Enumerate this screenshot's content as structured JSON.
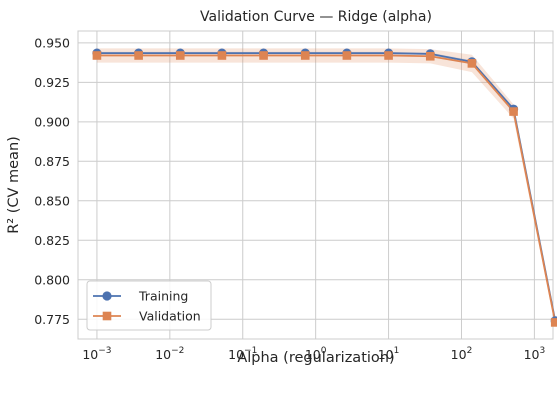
{
  "chart_data": {
    "type": "line",
    "title": "Validation Curve — Ridge (alpha)",
    "xlabel": "Alpha (regularization)",
    "ylabel": "R² (CV mean)",
    "xscale": "log",
    "xlim": [
      0.00055,
      1800
    ],
    "ylim": [
      0.7625,
      0.9575
    ],
    "x": [
      0.001,
      0.00373,
      0.0139,
      0.0518,
      0.193,
      0.72,
      2.68,
      10.0,
      37.3,
      139,
      518,
      1930
    ],
    "xticks": [
      {
        "value": 0.001,
        "base": "10",
        "exp": "−3"
      },
      {
        "value": 0.01,
        "base": "10",
        "exp": "−2"
      },
      {
        "value": 0.1,
        "base": "10",
        "exp": "−1"
      },
      {
        "value": 1,
        "base": "10",
        "exp": "0"
      },
      {
        "value": 10,
        "base": "10",
        "exp": "1"
      },
      {
        "value": 100,
        "base": "10",
        "exp": "2"
      },
      {
        "value": 1000,
        "base": "10",
        "exp": "3"
      }
    ],
    "yticks": [
      "0.775",
      "0.800",
      "0.825",
      "0.850",
      "0.875",
      "0.900",
      "0.925",
      "0.950"
    ],
    "grid": true,
    "legend_position": "lower-left",
    "series": [
      {
        "name": "Training",
        "marker": "circle",
        "color": "#4c72b0",
        "values": [
          0.9435,
          0.9435,
          0.9435,
          0.9435,
          0.9435,
          0.9435,
          0.9435,
          0.9435,
          0.943,
          0.938,
          0.908,
          0.774
        ],
        "band_halfwidth": [
          0.0008,
          0.0008,
          0.0008,
          0.0008,
          0.0008,
          0.0008,
          0.0008,
          0.0008,
          0.0008,
          0.0009,
          0.0012,
          0.0012
        ]
      },
      {
        "name": "Validation",
        "marker": "square",
        "color": "#dd8452",
        "values": [
          0.942,
          0.942,
          0.942,
          0.942,
          0.942,
          0.942,
          0.942,
          0.942,
          0.9415,
          0.937,
          0.9065,
          0.773
        ],
        "band_halfwidth": [
          0.0045,
          0.0045,
          0.0045,
          0.0045,
          0.0045,
          0.0045,
          0.0045,
          0.0045,
          0.0045,
          0.0055,
          0.0045,
          0.0025
        ]
      }
    ]
  }
}
